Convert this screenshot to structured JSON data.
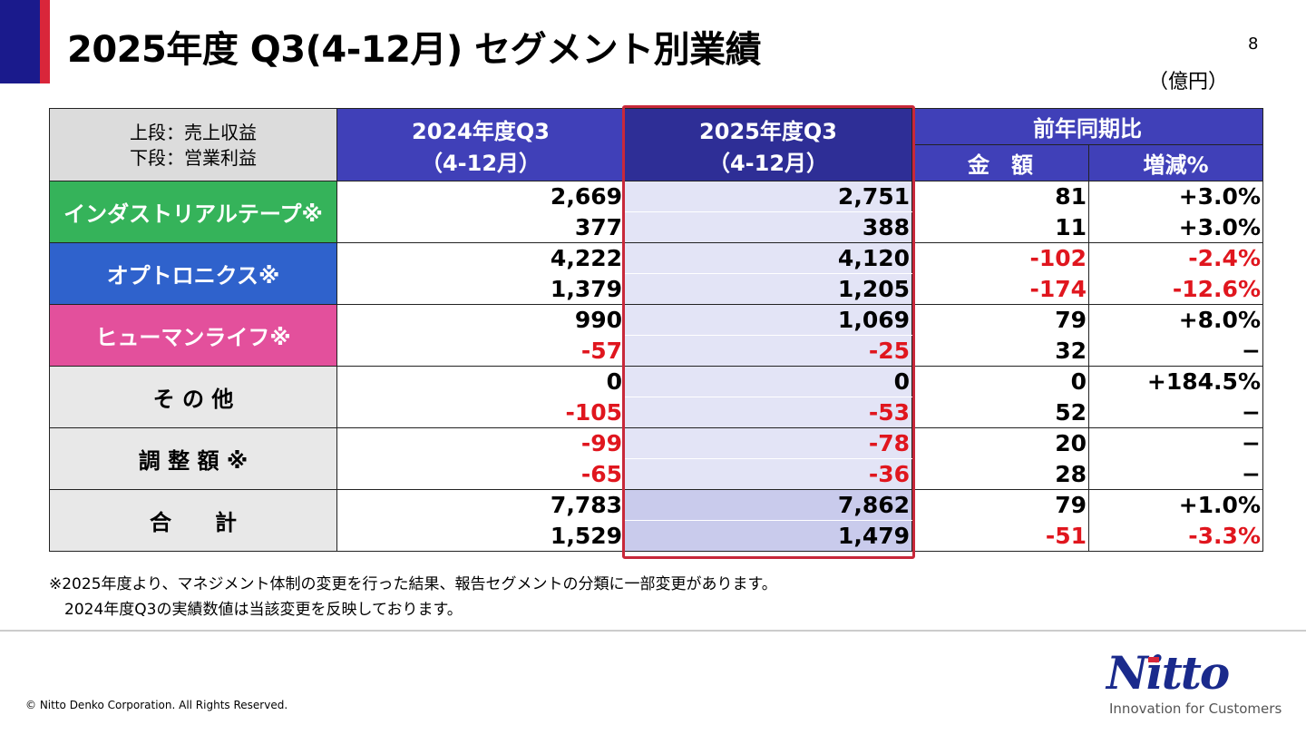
{
  "title": "2025年度 Q3(4-12月) セグメント別業績",
  "page_number": "8",
  "unit": "（億円）",
  "header": {
    "corner_line1": "上段：売上収益",
    "corner_line2": "下段：営業利益",
    "prev_line1": "2024年度Q3",
    "prev_line2": "（4-12月）",
    "curr_line1": "2025年度Q3",
    "curr_line2": "（4-12月）",
    "yoy": "前年同期比",
    "amount": "金　額",
    "pct": "増減%"
  },
  "rows": [
    {
      "segment": "インダストリアルテープ※",
      "color": "#35b35a",
      "revenue": [
        "2,669",
        "2,751",
        "81",
        "+3.0%"
      ],
      "op": [
        "377",
        "388",
        "11",
        "+3.0%"
      ]
    },
    {
      "segment": "オプトロニクス※",
      "color": "#2f62cc",
      "revenue": [
        "4,222",
        "4,120",
        "-102",
        "-2.4%"
      ],
      "op": [
        "1,379",
        "1,205",
        "-174",
        "-12.6%"
      ]
    },
    {
      "segment": "ヒューマンライフ※",
      "color": "#e3509c",
      "revenue": [
        "990",
        "1,069",
        "79",
        "+8.0%"
      ],
      "op": [
        "-57",
        "-25",
        "32",
        "−"
      ]
    },
    {
      "segment": "そ の 他",
      "color": "#e8e8e8",
      "revenue": [
        "0",
        "0",
        "0",
        "+184.5%"
      ],
      "op": [
        "-105",
        "-53",
        "52",
        "−"
      ]
    },
    {
      "segment": "調 整 額 ※",
      "color": "#e8e8e8",
      "revenue": [
        "-99",
        "-78",
        "20",
        "−"
      ],
      "op": [
        "-65",
        "-36",
        "28",
        "−"
      ]
    },
    {
      "segment": "合　　計",
      "color": "#e8e8e8",
      "revenue": [
        "7,783",
        "7,862",
        "79",
        "+1.0%"
      ],
      "op": [
        "1,529",
        "1,479",
        "-51",
        "-3.3%"
      ]
    }
  ],
  "note_line1": "※2025年度より、マネジメント体制の変更を行った結果、報告セグメントの分類に一部変更があります。",
  "note_line2": "　2024年度Q3の実績数値は当該変更を反映しております。",
  "copyright": "© Nitto Denko Corporation. All Rights Reserved.",
  "logo": "Nitto",
  "tagline": "Innovation for Customers",
  "colors": {
    "negative": "#e0161e",
    "header": "#4040b8",
    "highlight": "#c8283a"
  }
}
